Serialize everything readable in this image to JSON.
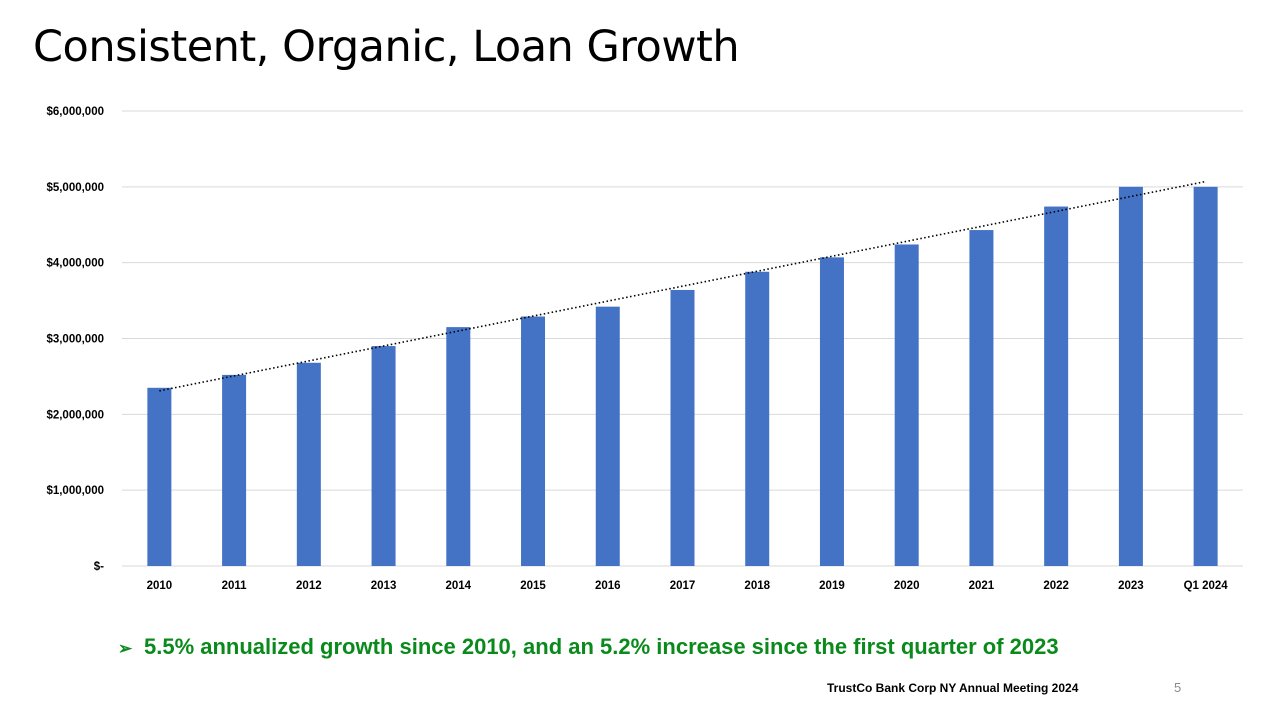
{
  "slide": {
    "title": "Consistent, Organic, Loan Growth",
    "bullet_text": "5.5% annualized growth since 2010, and an 5.2% increase since the first quarter of 2023",
    "footer": "TrustCo  Bank Corp NY Annual Meeting 2024",
    "page_number": "5",
    "bullet_color": "#0b8a1c"
  },
  "chart_data": {
    "type": "bar",
    "title": "",
    "xlabel": "",
    "ylabel": "",
    "categories": [
      "2010",
      "2011",
      "2012",
      "2013",
      "2014",
      "2015",
      "2016",
      "2017",
      "2018",
      "2019",
      "2020",
      "2021",
      "2022",
      "2023",
      "Q1 2024"
    ],
    "series": [
      {
        "name": "Loans",
        "color": "#4472c4",
        "values": [
          2350000,
          2520000,
          2680000,
          2900000,
          3150000,
          3290000,
          3420000,
          3640000,
          3880000,
          4070000,
          4240000,
          4430000,
          4740000,
          5000000,
          5000000
        ]
      }
    ],
    "trendline": {
      "type": "linear",
      "style": "dotted",
      "color": "#000000",
      "start": 2310000,
      "end": 5070000
    },
    "ylim": [
      0,
      6000000
    ],
    "yticks": [
      0,
      1000000,
      2000000,
      3000000,
      4000000,
      5000000,
      6000000
    ],
    "ytick_labels": [
      "$-",
      "$1,000,000",
      "$2,000,000",
      "$3,000,000",
      "$4,000,000",
      "$5,000,000",
      "$6,000,000"
    ],
    "grid": true,
    "gridline_color": "#d9d9d9"
  }
}
